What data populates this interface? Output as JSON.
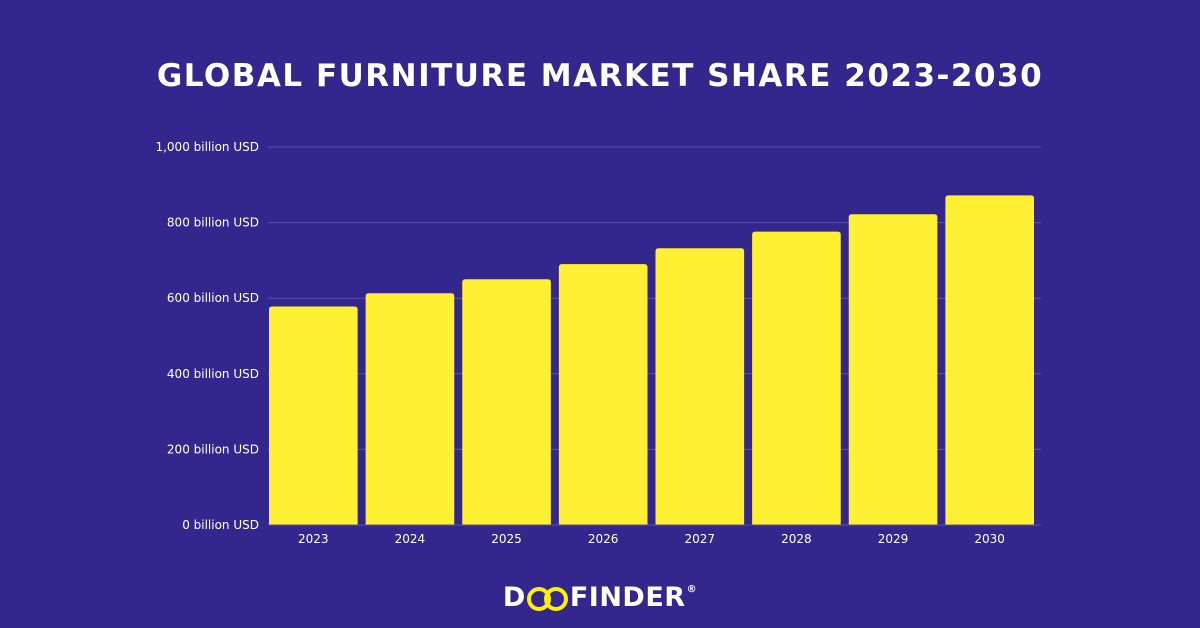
{
  "chart_data": {
    "type": "bar",
    "title": "GLOBAL FURNITURE MARKET SHARE 2023-2030",
    "categories": [
      "2023",
      "2024",
      "2025",
      "2026",
      "2027",
      "2028",
      "2029",
      "2030"
    ],
    "values": [
      578,
      613,
      650,
      690,
      732,
      776,
      822,
      872
    ],
    "unit": "billion USD",
    "ylim": [
      0,
      1000
    ],
    "yticks": [
      0,
      200,
      400,
      600,
      800,
      1000
    ],
    "ytick_labels": [
      "0 billion USD",
      "200 billion USD",
      "400 billion USD",
      "600 billion USD",
      "800 billion USD",
      "1,000 billion USD"
    ],
    "grid": true,
    "xlabel": "",
    "ylabel": ""
  },
  "colors": {
    "background": "#33278e",
    "bar": "#fff033",
    "grid": "#5a50a8",
    "text": "#ffffff",
    "accent": "#fff200"
  },
  "brand": {
    "pre": "D",
    "post": "FINDER",
    "reg": "®"
  }
}
